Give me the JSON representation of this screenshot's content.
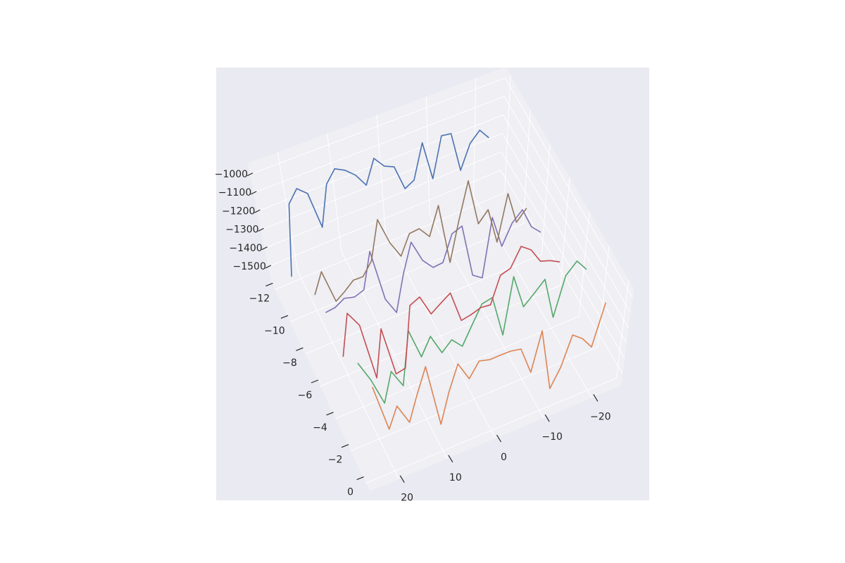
{
  "chart_data": {
    "type": "line3d",
    "x": [
      22,
      20,
      18,
      16,
      14,
      12,
      10,
      8,
      6,
      4,
      2,
      0,
      -2,
      -4,
      -6,
      -8,
      -10,
      -12,
      -14,
      -16,
      -18,
      -20,
      -22
    ],
    "series": [
      {
        "color": "#4c72b0",
        "y": -12,
        "values": [
          -1550,
          -1175,
          -1111,
          -1158,
          -1362,
          -1148,
          -1084,
          -1112,
          -1159,
          -1234,
          -1108,
          -1171,
          -1195,
          -1334,
          -1308,
          -1125,
          -1341,
          -1127,
          -1136,
          -1356,
          -1230,
          -1178,
          -1240
        ]
      },
      {
        "color": "#dd8452",
        "y": 0,
        "values": [
          -1005,
          -1307,
          -1182,
          -1314,
          -1157,
          -1004,
          -1407,
          -1222,
          -1065,
          -1188,
          -1099,
          -1117,
          -1115,
          -1114,
          -1127,
          -1305,
          -1060,
          -1464,
          -1352,
          -1167,
          -1217,
          -1298,
          -1035
        ]
      },
      {
        "color": "#55a868",
        "y": -2,
        "values": [
          -1075,
          -1208,
          -1379,
          -1204,
          -1319,
          -997,
          -1187,
          -1083,
          -1211,
          -1155,
          -1221,
          -1113,
          -1004,
          -989,
          -1251,
          -907,
          -1123,
          -1064,
          -1000,
          -1265,
          -1028,
          -960,
          -1038
        ]
      },
      {
        "color": "#c44e52",
        "y": -4.5,
        "values": [
          -1301,
          -1060,
          -1157,
          -1501,
          -1226,
          -1524,
          -1513,
          -1156,
          -1128,
          -1255,
          -1215,
          -1175,
          -1366,
          -1355,
          -1336,
          -1343,
          -1187,
          -1168,
          -1059,
          -1104,
          -1197,
          -1217,
          -1249
        ]
      },
      {
        "color": "#8172b3",
        "y": -6.5,
        "values": [
          -1238,
          -1231,
          -1200,
          -1215,
          -1196,
          -991,
          -1296,
          -1397,
          -1196,
          -1028,
          -1159,
          -1223,
          -1217,
          -1070,
          -1047,
          -1360,
          -1399,
          -1065,
          -1258,
          -1144,
          -1088,
          -1211,
          -1267
        ]
      },
      {
        "color": "#937860",
        "y": -8,
        "values": [
          -1283,
          -1171,
          -1364,
          -1329,
          -1286,
          -1288,
          -1220,
          -1003,
          -1159,
          -1258,
          -1150,
          -1144,
          -1211,
          -1054,
          -1405,
          -1188,
          -978,
          -1248,
          -1189,
          -1398,
          -1140,
          -1328,
          -1269
        ]
      }
    ],
    "xlim": [
      -26,
      26
    ],
    "ylim": [
      -12.5,
      0.5
    ],
    "zlim": [
      -1580,
      -940
    ],
    "xticks": [
      {
        "value": -20,
        "label": "−20"
      },
      {
        "value": -10,
        "label": "−10"
      },
      0,
      10,
      20
    ],
    "yticks": [
      {
        "value": -12,
        "label": "−12"
      },
      {
        "value": -10,
        "label": "−10"
      },
      {
        "value": -8,
        "label": "−8"
      },
      {
        "value": -6,
        "label": "−6"
      },
      {
        "value": -4,
        "label": "−4"
      },
      {
        "value": -2,
        "label": "−2"
      },
      0
    ],
    "zticks": [
      {
        "value": -1500,
        "label": "−1500"
      },
      {
        "value": -1400,
        "label": "−1400"
      },
      {
        "value": -1300,
        "label": "−1300"
      },
      {
        "value": -1200,
        "label": "−1200"
      },
      {
        "value": -1100,
        "label": "−1100"
      },
      {
        "value": -1000,
        "label": "−1000"
      }
    ],
    "grid": true
  }
}
